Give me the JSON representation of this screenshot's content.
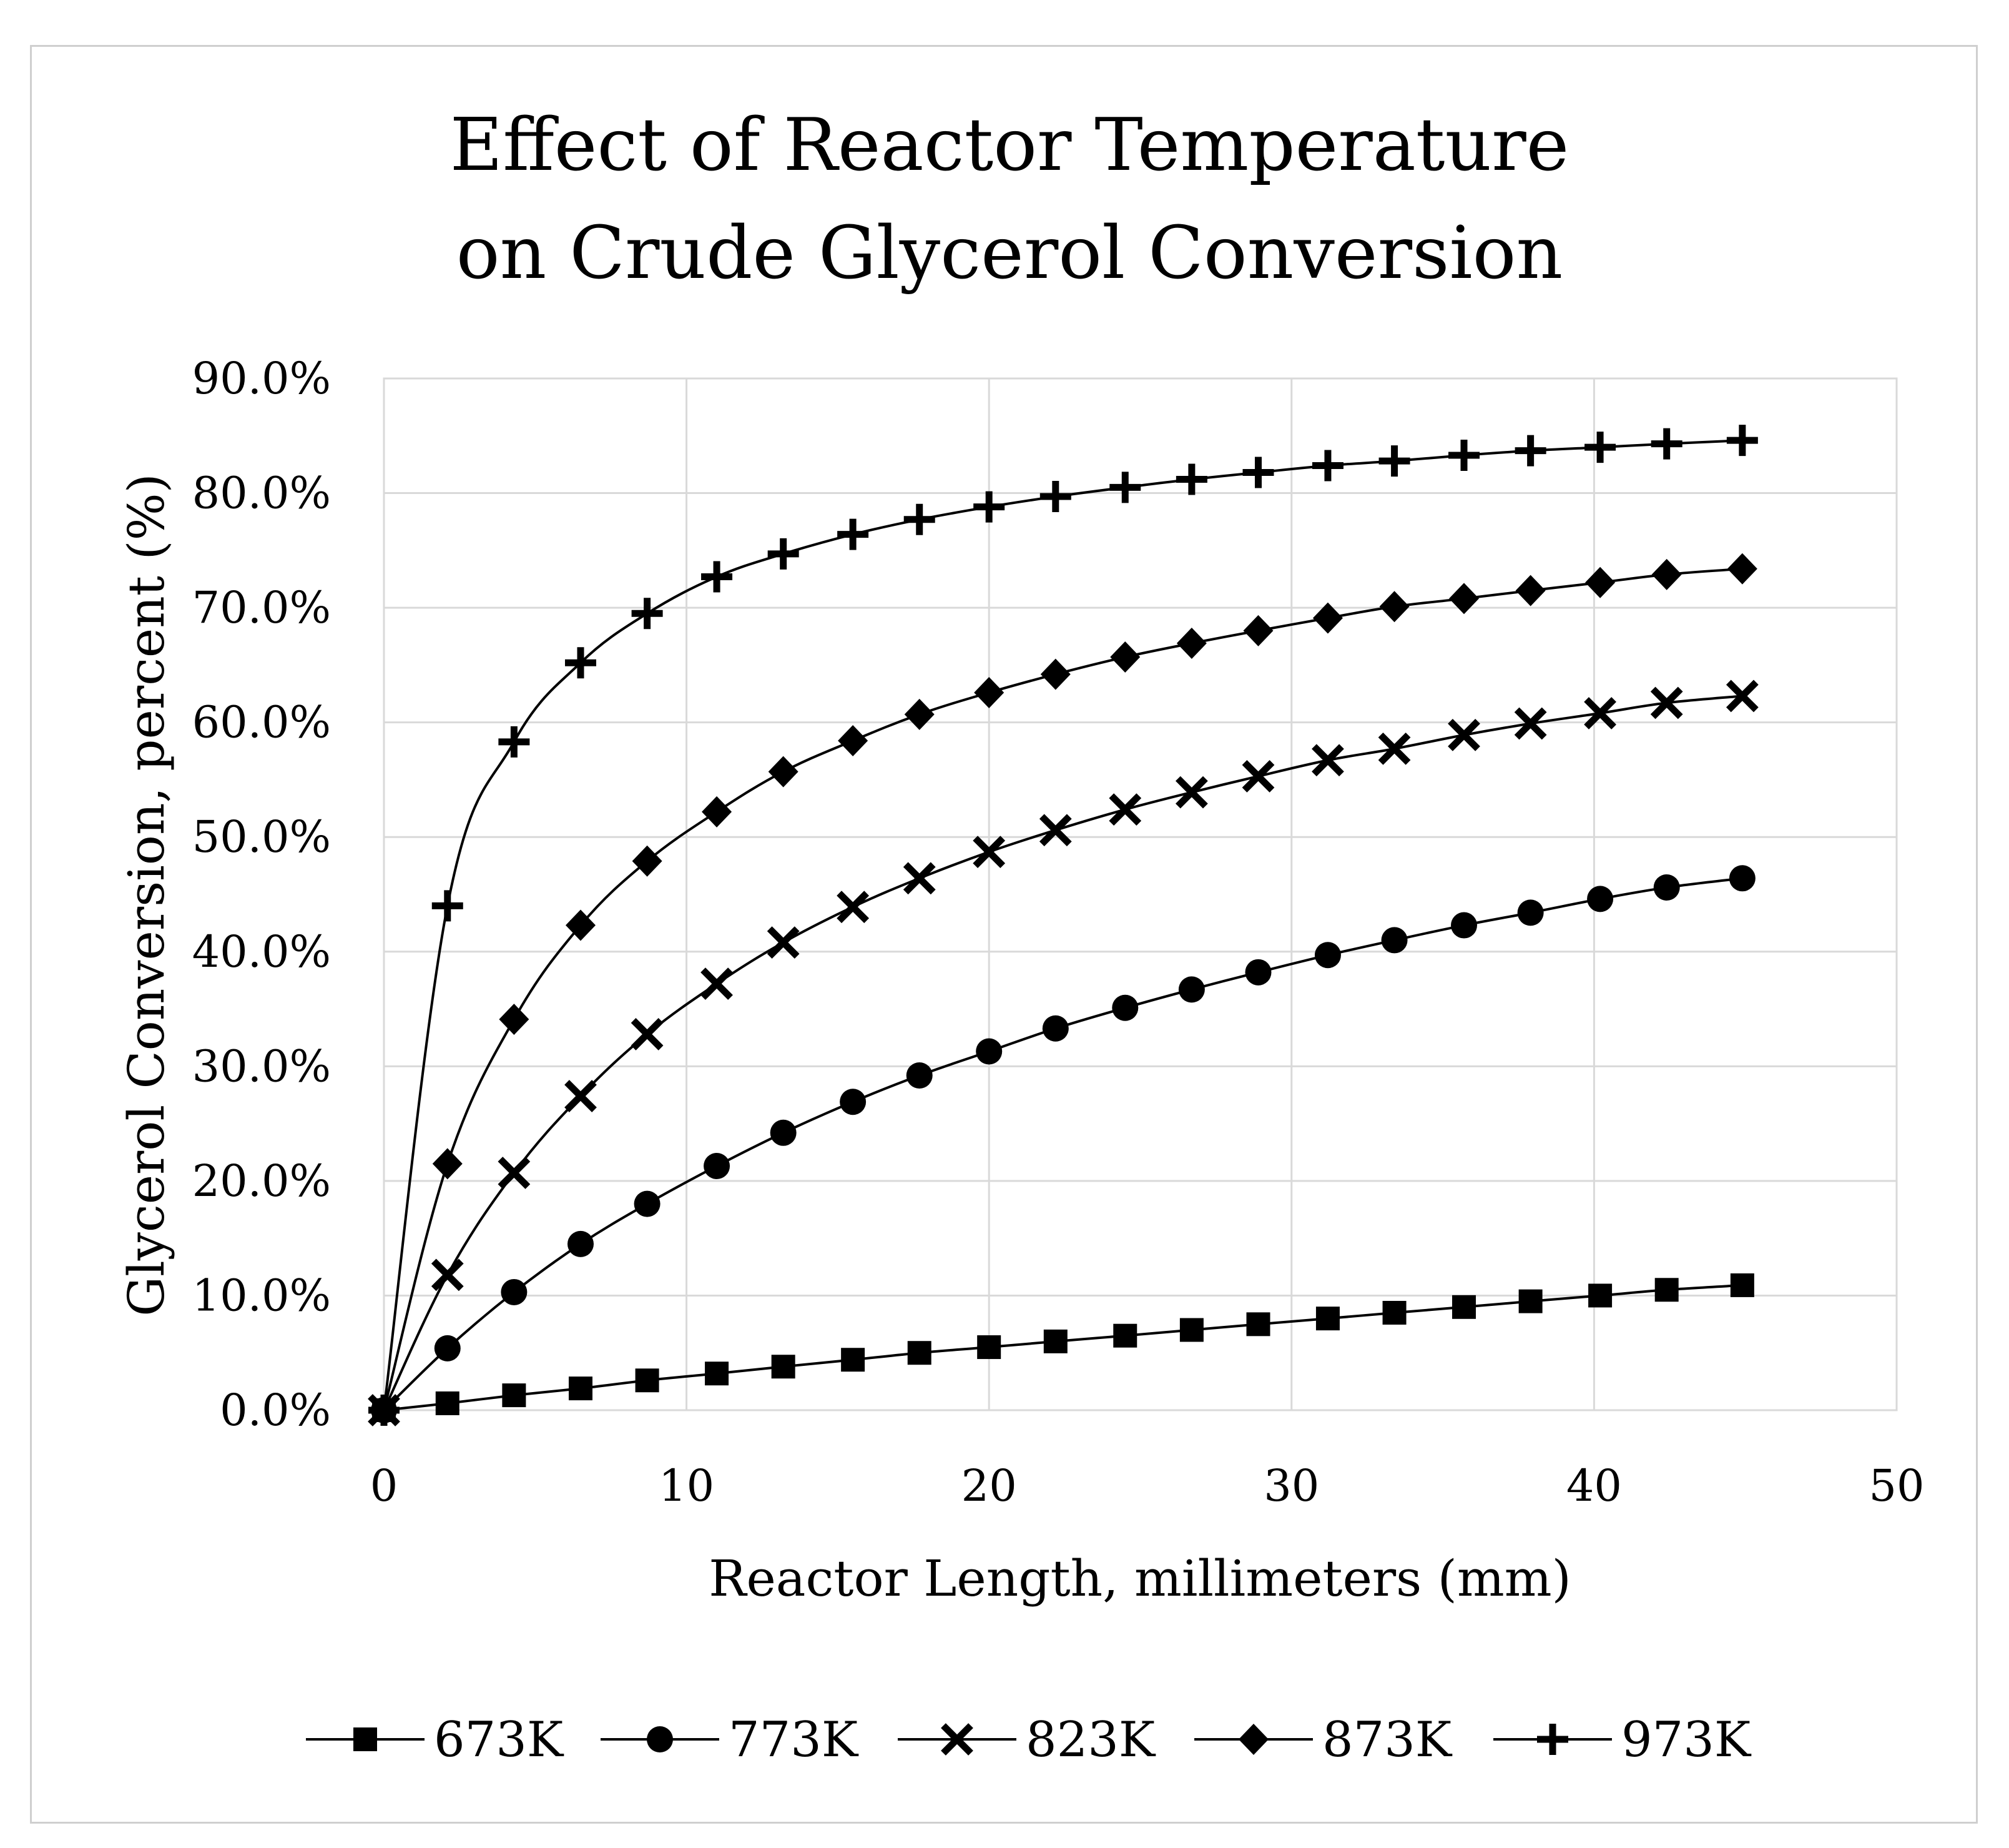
{
  "chart_data": {
    "type": "line",
    "title": [
      "Effect of Reactor Temperature",
      "on Crude Glycerol Conversion"
    ],
    "xlabel": "Reactor Length, millimeters (mm)",
    "ylabel": "Glycerol Conversion, percent (%)",
    "xlim": [
      0,
      50
    ],
    "ylim": [
      0,
      90
    ],
    "x_ticks": [
      0,
      10,
      20,
      30,
      40,
      50
    ],
    "x_tick_labels": [
      "0",
      "10",
      "20",
      "30",
      "40",
      "50"
    ],
    "y_ticks": [
      0,
      10,
      20,
      30,
      40,
      50,
      60,
      70,
      80,
      90
    ],
    "y_tick_labels": [
      "0.0%",
      "10.0%",
      "20.0%",
      "30.0%",
      "40.0%",
      "50.0%",
      "60.0%",
      "70.0%",
      "80.0%",
      "90.0%"
    ],
    "grid": true,
    "legend_position": "bottom",
    "x": [
      0,
      2.1,
      4.3,
      6.5,
      8.7,
      11.0,
      13.2,
      15.5,
      17.7,
      20.0,
      22.2,
      24.5,
      26.7,
      28.9,
      31.2,
      33.4,
      35.7,
      37.9,
      40.2,
      42.4,
      44.9
    ],
    "series": [
      {
        "name": "673K",
        "marker": "square",
        "values": [
          0,
          0.6,
          1.3,
          1.9,
          2.6,
          3.2,
          3.8,
          4.4,
          5.0,
          5.5,
          6.0,
          6.5,
          7.0,
          7.5,
          8.0,
          8.5,
          9.0,
          9.5,
          10.0,
          10.5,
          10.9
        ]
      },
      {
        "name": "773K",
        "marker": "circle",
        "values": [
          0,
          5.4,
          10.3,
          14.5,
          18.0,
          21.3,
          24.2,
          26.9,
          29.2,
          31.3,
          33.3,
          35.1,
          36.7,
          38.2,
          39.7,
          41.0,
          42.3,
          43.4,
          44.6,
          45.6,
          46.4
        ]
      },
      {
        "name": "823K",
        "marker": "x",
        "values": [
          0,
          11.8,
          20.7,
          27.4,
          32.8,
          37.2,
          40.8,
          43.9,
          46.4,
          48.7,
          50.6,
          52.4,
          53.9,
          55.3,
          56.7,
          57.7,
          58.9,
          59.9,
          60.8,
          61.7,
          62.3
        ]
      },
      {
        "name": "873K",
        "marker": "diamond",
        "values": [
          0,
          21.5,
          34.1,
          42.3,
          47.9,
          52.2,
          55.7,
          58.4,
          60.7,
          62.6,
          64.2,
          65.7,
          66.9,
          68.0,
          69.1,
          70.1,
          70.8,
          71.5,
          72.2,
          72.9,
          73.4
        ]
      },
      {
        "name": "973K",
        "marker": "plus",
        "values": [
          0,
          44.0,
          58.3,
          65.2,
          69.5,
          72.7,
          74.7,
          76.4,
          77.7,
          78.8,
          79.7,
          80.5,
          81.2,
          81.8,
          82.4,
          82.8,
          83.3,
          83.7,
          84.0,
          84.3,
          84.6
        ]
      }
    ]
  }
}
